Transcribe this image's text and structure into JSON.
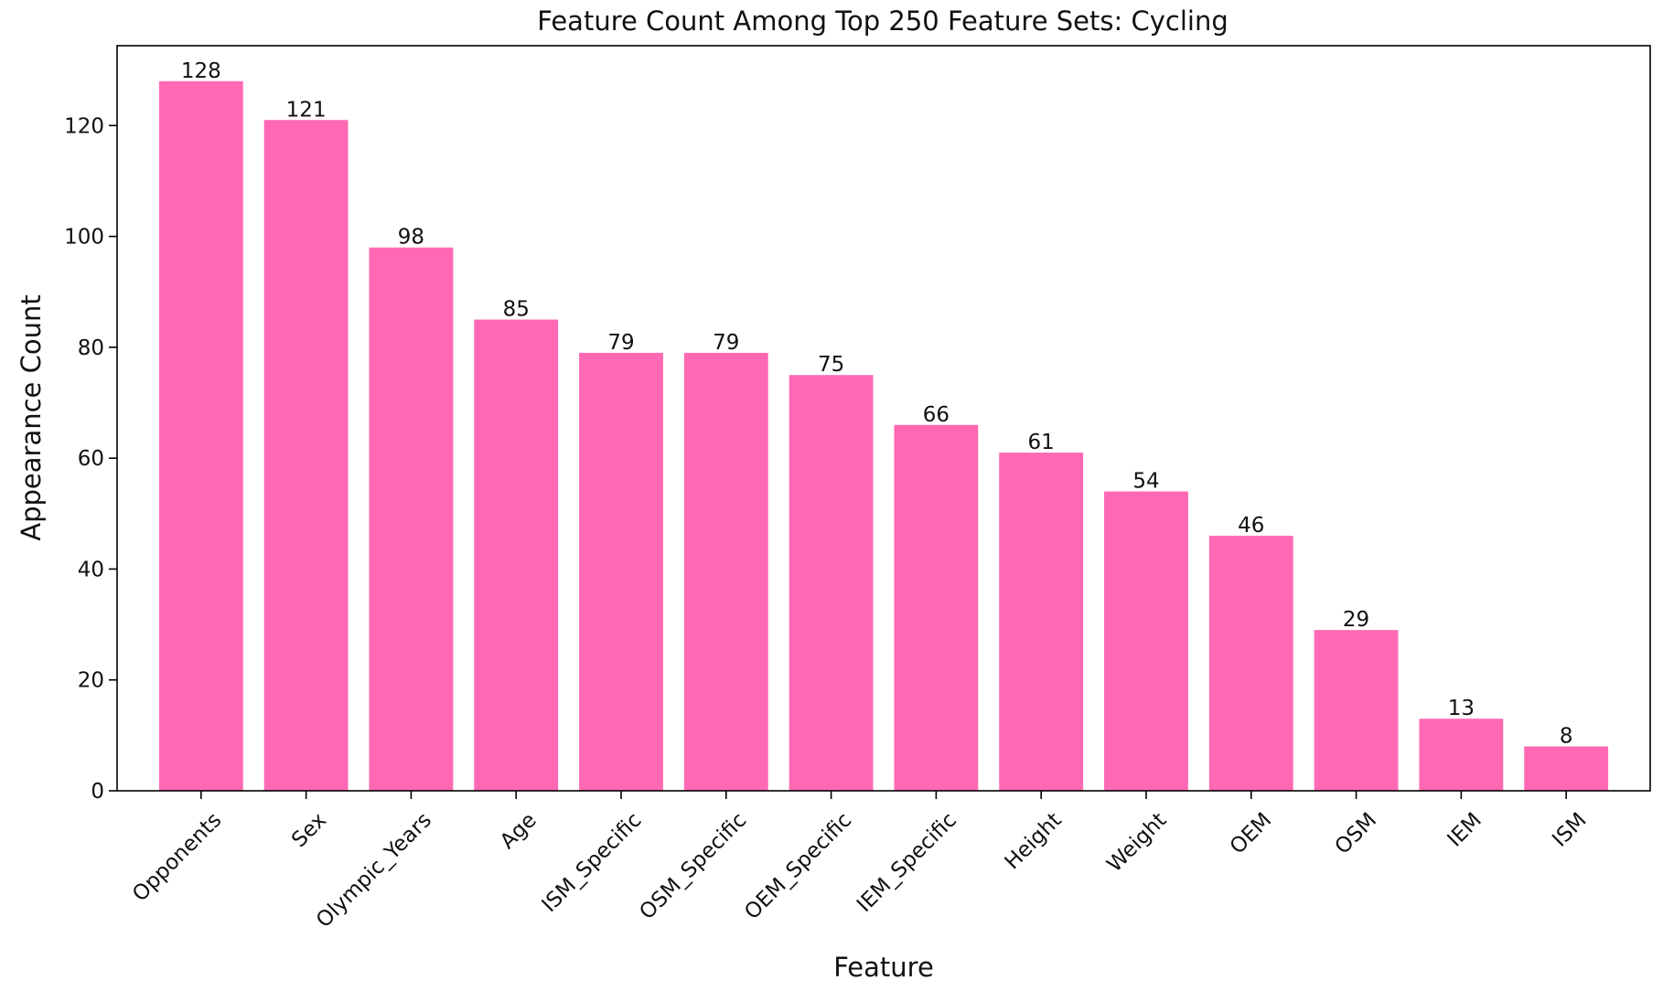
{
  "chart_data": {
    "type": "bar",
    "title": "Feature Count Among Top 250 Feature Sets: Cycling",
    "xlabel": "Feature",
    "ylabel": "Appearance Count",
    "categories": [
      "Opponents",
      "Sex",
      "Olympic_Years",
      "Age",
      "ISM_Specific",
      "OSM_Specific",
      "OEM_Specific",
      "IEM_Specific",
      "Height",
      "Weight",
      "OEM",
      "OSM",
      "IEM",
      "ISM"
    ],
    "values": [
      128,
      121,
      98,
      85,
      79,
      79,
      75,
      66,
      61,
      54,
      46,
      29,
      13,
      8
    ],
    "ylim": [
      0,
      134.4
    ],
    "yticks": [
      0,
      20,
      40,
      60,
      80,
      100,
      120
    ],
    "grid": false,
    "bar_color": "#ff69b4",
    "show_value_labels": true
  }
}
